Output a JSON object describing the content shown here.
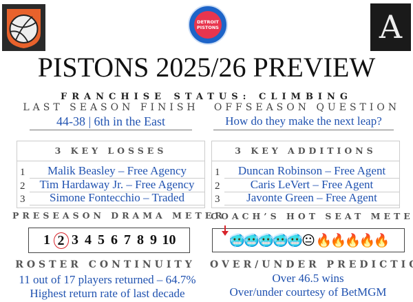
{
  "logos": {
    "left": "basketball-shield-logo",
    "center_text": [
      "DETROIT",
      "PISTONS"
    ],
    "right_text": "A"
  },
  "title": "PISTONS 2025/26 PREVIEW",
  "franchise_status": "FRANCHISE STATUS: CLIMBING",
  "last_season": {
    "heading": "LAST SEASON FINISH",
    "value": "44-38 | 6th  in the East"
  },
  "offseason": {
    "heading": "OFFSEASON QUESTION",
    "value": "How do they make the next leap?"
  },
  "losses": {
    "heading": "3 KEY LOSSES",
    "items": [
      {
        "n": "1",
        "text": "Malik Beasley – Free Agency"
      },
      {
        "n": "2",
        "text": "Tim Hardaway Jr. – Free Agency"
      },
      {
        "n": "3",
        "text": "Simone Fontecchio – Traded"
      }
    ]
  },
  "additions": {
    "heading": "3 KEY ADDITIONS",
    "items": [
      {
        "n": "1",
        "text": "Duncan Robinson – Free Agent"
      },
      {
        "n": "2",
        "text": "Caris LeVert – Free Agent"
      },
      {
        "n": "3",
        "text": "Javonte Green – Free Agent"
      }
    ]
  },
  "drama": {
    "heading": "PRESEASON DRAMA METER",
    "scale": [
      "1",
      "2",
      "3",
      "4",
      "5",
      "6",
      "7",
      "8",
      "9",
      "10"
    ],
    "selected": 2,
    "highlight_color": "#d8232a"
  },
  "hot_seat": {
    "heading": "COACH’S HOT SEAT METER",
    "icons": [
      "cold-face",
      "cold-face",
      "cold-face",
      "cold-face",
      "cold-face",
      "neutral-face",
      "fire",
      "fire",
      "fire",
      "fire",
      "fire"
    ],
    "glyphs": [
      "🥶",
      "🥶",
      "🥶",
      "🥶",
      "🥶",
      "😐",
      "🔥",
      "🔥",
      "🔥",
      "🔥",
      "🔥"
    ],
    "selected_index": 1
  },
  "roster": {
    "heading": "ROSTER CONTINUITY",
    "line1": "11 out of 17 players returned – 64.7%",
    "line2": "Highest return rate of last decade"
  },
  "over_under": {
    "heading": "OVER/UNDER PREDICTION",
    "line1": "Over 46.5 wins",
    "line2": "Over/under courtesy of BetMGM"
  },
  "colors": {
    "accent_blue": "#2052b0",
    "pistons_red": "#e8354e",
    "pistons_blue": "#1d64c8"
  }
}
